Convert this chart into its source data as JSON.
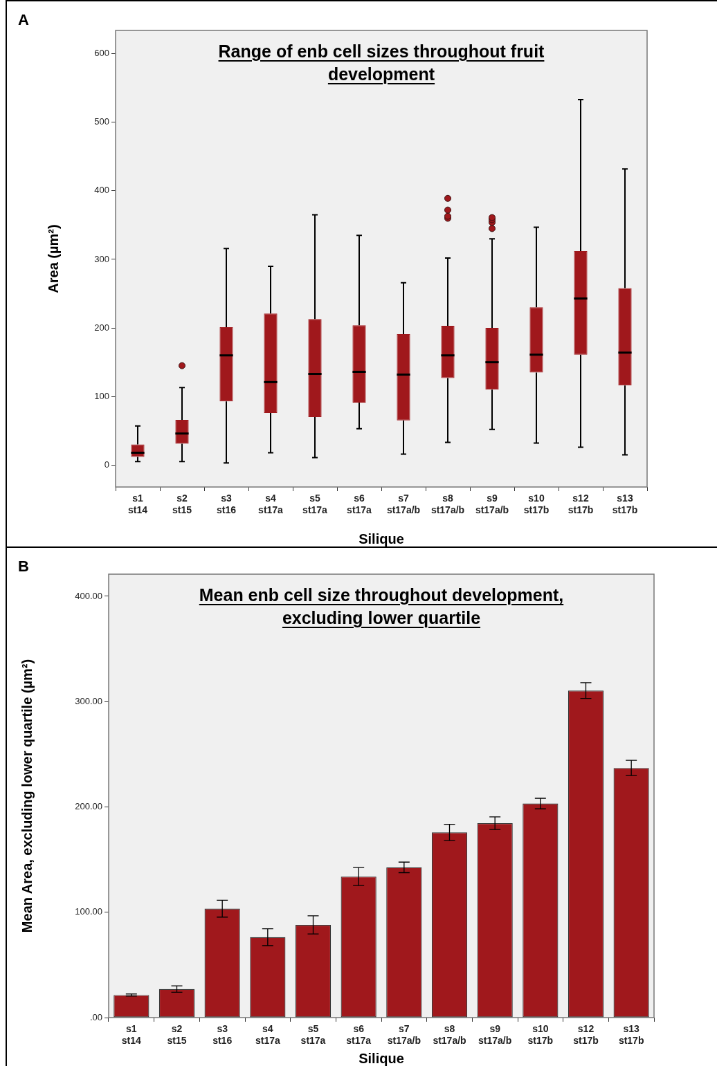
{
  "chart_data": [
    {
      "type": "box",
      "title": "Range of enb cell sizes throughout fruit development",
      "xlabel": "Silique",
      "ylabel": "Area (µm²)",
      "annotations": [
        "A"
      ],
      "color": "#a0181c",
      "categories": [
        "s1\nst14",
        "s2\nst15",
        "s3\nst16",
        "s4\nst17a",
        "s5\nst17a",
        "s6\nst17a",
        "s7\nst17a/b",
        "s8\nst17a/b",
        "s9\nst17a/b",
        "s10\nst17b",
        "s12\nst17b",
        "s13\nst17b"
      ],
      "boxes": [
        {
          "low": 5,
          "q1": 12,
          "median": 18,
          "q3": 30,
          "high": 57
        },
        {
          "low": 5,
          "q1": 31,
          "median": 46,
          "q3": 66,
          "high": 113,
          "outliers": [
            145
          ]
        },
        {
          "low": 3,
          "q1": 93,
          "median": 160,
          "q3": 201,
          "high": 316
        },
        {
          "low": 18,
          "q1": 76,
          "median": 121,
          "q3": 221,
          "high": 290
        },
        {
          "low": 11,
          "q1": 70,
          "median": 133,
          "q3": 213,
          "high": 365
        },
        {
          "low": 53,
          "q1": 91,
          "median": 136,
          "q3": 204,
          "high": 335
        },
        {
          "low": 16,
          "q1": 65,
          "median": 132,
          "q3": 191,
          "high": 266
        },
        {
          "low": 33,
          "q1": 127,
          "median": 160,
          "q3": 203,
          "high": 302,
          "outliers": [
            360,
            363,
            372,
            389
          ]
        },
        {
          "low": 52,
          "q1": 110,
          "median": 150,
          "q3": 200,
          "high": 330,
          "outliers": [
            345,
            354,
            358,
            361
          ]
        },
        {
          "low": 32,
          "q1": 135,
          "median": 161,
          "q3": 230,
          "high": 347
        },
        {
          "low": 26,
          "q1": 161,
          "median": 243,
          "q3": 312,
          "high": 533
        },
        {
          "low": 15,
          "q1": 116,
          "median": 164,
          "q3": 258,
          "high": 432
        }
      ],
      "ylim": [
        -32,
        634
      ],
      "yticks": [
        0,
        100,
        200,
        300,
        400,
        500,
        600
      ],
      "grid": false
    },
    {
      "type": "bar",
      "title": "Mean enb cell size throughout development, excluding lower quartile",
      "xlabel": "Silique",
      "ylabel": "Mean Area, excluding lower quartile (µm²)",
      "annotations": [
        "B"
      ],
      "color": "#a0181c",
      "categories": [
        "s1\nst14",
        "s2\nst15",
        "s3\nst16",
        "s4\nst17a",
        "s5\nst17a",
        "s6\nst17a",
        "s7\nst17a/b",
        "s8\nst17a/b",
        "s9\nst17a/b",
        "s10\nst17b",
        "s12\nst17b",
        "s13\nst17b"
      ],
      "values": [
        21.4,
        27.1,
        103.4,
        76.3,
        88,
        133.9,
        142.6,
        175.8,
        184.5,
        203.2,
        310.5,
        237
      ],
      "errors": [
        1,
        3,
        8,
        8,
        8.6,
        8.6,
        5,
        7.7,
        6,
        5,
        7.5,
        7.2
      ],
      "ylim": [
        0,
        421
      ],
      "yticks": [
        {
          "value": 0,
          "label": ".00"
        },
        {
          "value": 100,
          "label": "100.00"
        },
        {
          "value": 200,
          "label": "200.00"
        },
        {
          "value": 300,
          "label": "300.00"
        },
        {
          "value": 400,
          "label": "400.00"
        }
      ],
      "grid": false
    }
  ]
}
